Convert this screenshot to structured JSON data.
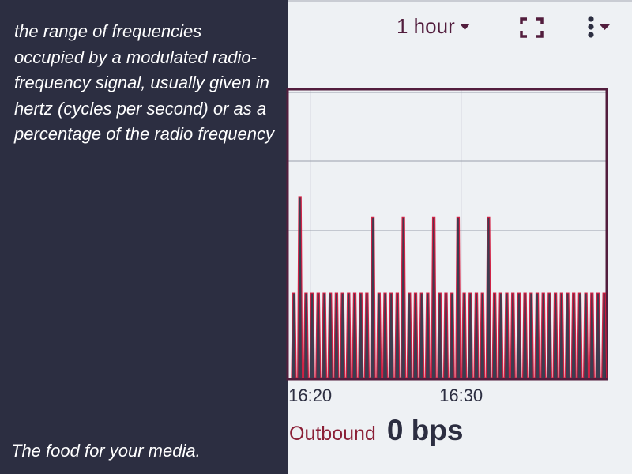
{
  "sidebar": {
    "definition": "the range of frequencies occupied by a modulated radio-frequency signal, usually given in hertz (cycles per second) or as a percentage of the radio frequency",
    "tagline": "The food for your media."
  },
  "toolbar": {
    "range_label": "1 hour",
    "caret_icon": "caret-down-icon",
    "fullscreen_icon": "fullscreen-icon",
    "menu_icon": "kebab-menu-icon"
  },
  "chart_data": {
    "type": "line",
    "title": "",
    "xlabel": "",
    "ylabel": "",
    "x_ticks": [
      "16:20",
      "16:30"
    ],
    "grid": true,
    "series": [
      {
        "color": "#2c2e41",
        "accent": "#d4163c",
        "peaks": [
          {
            "t": "16:19:15",
            "v": 1.0
          },
          {
            "t": "16:19:30",
            "v": 0.7
          },
          {
            "t": "16:24:00",
            "v": 0.62
          },
          {
            "t": "16:26:00",
            "v": 0.62
          },
          {
            "t": "16:28:00",
            "v": 0.62
          },
          {
            "t": "16:30:00",
            "v": 0.62
          },
          {
            "t": "16:32:00",
            "v": 0.62
          }
        ],
        "baseline": 0.33
      }
    ]
  },
  "stats": {
    "label": "Outbound",
    "value": "0 bps",
    "label_color": "#8b1f36"
  }
}
